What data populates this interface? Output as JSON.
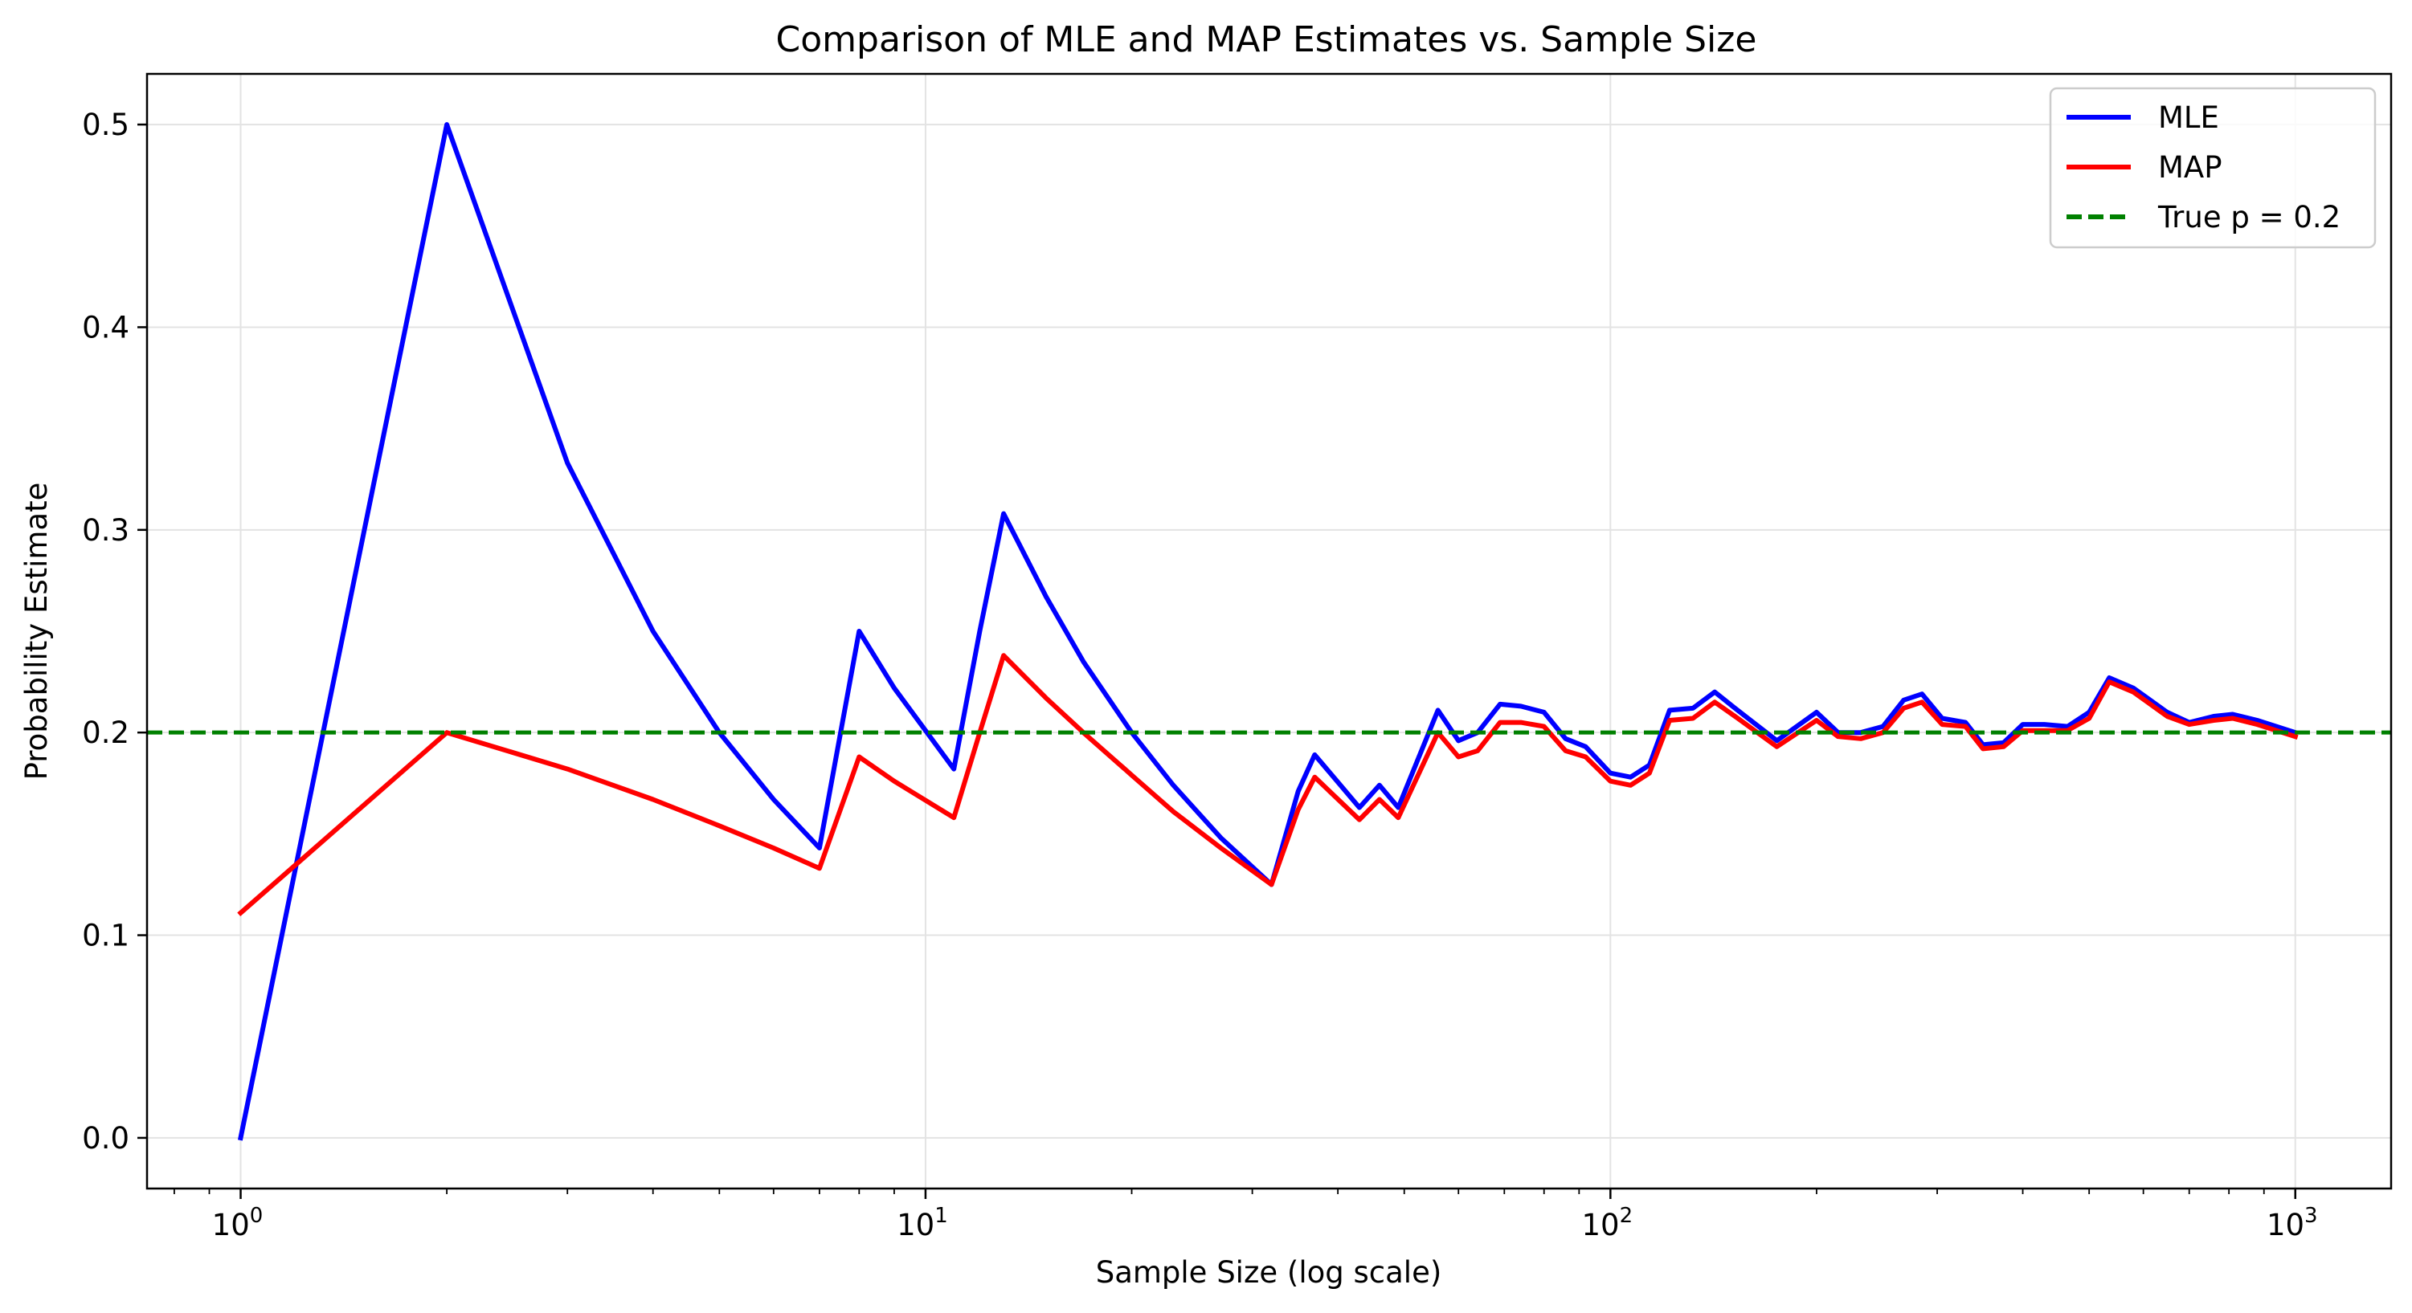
{
  "chart_data": {
    "type": "line",
    "title": "Comparison of MLE and MAP Estimates vs. Sample Size",
    "xlabel": "Sample Size (log scale)",
    "ylabel": "Probability Estimate",
    "x_scale": "log",
    "xlim": [
      0.73,
      1380
    ],
    "ylim": [
      -0.025,
      0.525
    ],
    "x_ticks": [
      {
        "value": 1,
        "base": "10",
        "exp": "0"
      },
      {
        "value": 10,
        "base": "10",
        "exp": "1"
      },
      {
        "value": 100,
        "base": "10",
        "exp": "2"
      },
      {
        "value": 1000,
        "base": "10",
        "exp": "3"
      }
    ],
    "y_ticks": [
      {
        "value": 0.0,
        "label": "0.0"
      },
      {
        "value": 0.1,
        "label": "0.1"
      },
      {
        "value": 0.2,
        "label": "0.2"
      },
      {
        "value": 0.3,
        "label": "0.3"
      },
      {
        "value": 0.4,
        "label": "0.4"
      },
      {
        "value": 0.5,
        "label": "0.5"
      }
    ],
    "grid": true,
    "legend_position": "top-right",
    "series": [
      {
        "name": "MLE",
        "color": "#0000ff",
        "style": "solid",
        "points": [
          [
            1,
            0.0
          ],
          [
            2,
            0.5
          ],
          [
            3,
            0.333
          ],
          [
            4,
            0.25
          ],
          [
            5,
            0.2
          ],
          [
            6,
            0.167
          ],
          [
            7,
            0.143
          ],
          [
            8,
            0.25
          ],
          [
            9,
            0.222
          ],
          [
            11,
            0.182
          ],
          [
            12,
            0.25
          ],
          [
            13,
            0.308
          ],
          [
            15,
            0.267
          ],
          [
            17,
            0.235
          ],
          [
            20,
            0.2
          ],
          [
            23,
            0.174
          ],
          [
            27,
            0.148
          ],
          [
            32,
            0.125
          ],
          [
            35,
            0.171
          ],
          [
            37,
            0.189
          ],
          [
            43,
            0.163
          ],
          [
            46,
            0.174
          ],
          [
            49,
            0.163
          ],
          [
            56,
            0.211
          ],
          [
            60,
            0.196
          ],
          [
            64,
            0.2
          ],
          [
            69,
            0.214
          ],
          [
            74,
            0.213
          ],
          [
            80,
            0.21
          ],
          [
            86,
            0.197
          ],
          [
            92,
            0.193
          ],
          [
            100,
            0.18
          ],
          [
            107,
            0.178
          ],
          [
            114,
            0.184
          ],
          [
            122,
            0.211
          ],
          [
            132,
            0.212
          ],
          [
            142,
            0.22
          ],
          [
            152,
            0.212
          ],
          [
            175,
            0.196
          ],
          [
            200,
            0.21
          ],
          [
            215,
            0.2
          ],
          [
            232,
            0.2
          ],
          [
            250,
            0.203
          ],
          [
            268,
            0.216
          ],
          [
            285,
            0.219
          ],
          [
            305,
            0.207
          ],
          [
            330,
            0.205
          ],
          [
            350,
            0.194
          ],
          [
            375,
            0.195
          ],
          [
            400,
            0.204
          ],
          [
            430,
            0.204
          ],
          [
            465,
            0.203
          ],
          [
            500,
            0.21
          ],
          [
            535,
            0.227
          ],
          [
            580,
            0.222
          ],
          [
            650,
            0.21
          ],
          [
            700,
            0.205
          ],
          [
            760,
            0.208
          ],
          [
            810,
            0.209
          ],
          [
            880,
            0.206
          ],
          [
            1000,
            0.2
          ]
        ]
      },
      {
        "name": "MAP",
        "color": "#ff0000",
        "style": "solid",
        "points": [
          [
            1,
            0.111
          ],
          [
            2,
            0.2
          ],
          [
            3,
            0.182
          ],
          [
            4,
            0.167
          ],
          [
            5,
            0.154
          ],
          [
            6,
            0.143
          ],
          [
            7,
            0.133
          ],
          [
            8,
            0.188
          ],
          [
            9,
            0.176
          ],
          [
            11,
            0.158
          ],
          [
            12,
            0.2
          ],
          [
            13,
            0.238
          ],
          [
            15,
            0.217
          ],
          [
            17,
            0.2
          ],
          [
            20,
            0.179
          ],
          [
            23,
            0.161
          ],
          [
            27,
            0.143
          ],
          [
            32,
            0.125
          ],
          [
            35,
            0.162
          ],
          [
            37,
            0.178
          ],
          [
            43,
            0.157
          ],
          [
            46,
            0.167
          ],
          [
            49,
            0.158
          ],
          [
            56,
            0.2
          ],
          [
            60,
            0.188
          ],
          [
            64,
            0.191
          ],
          [
            69,
            0.205
          ],
          [
            74,
            0.205
          ],
          [
            80,
            0.203
          ],
          [
            86,
            0.191
          ],
          [
            92,
            0.188
          ],
          [
            100,
            0.176
          ],
          [
            107,
            0.174
          ],
          [
            114,
            0.18
          ],
          [
            122,
            0.206
          ],
          [
            132,
            0.207
          ],
          [
            142,
            0.215
          ],
          [
            152,
            0.208
          ],
          [
            175,
            0.193
          ],
          [
            200,
            0.206
          ],
          [
            215,
            0.198
          ],
          [
            232,
            0.197
          ],
          [
            250,
            0.2
          ],
          [
            268,
            0.212
          ],
          [
            285,
            0.215
          ],
          [
            305,
            0.204
          ],
          [
            330,
            0.203
          ],
          [
            350,
            0.192
          ],
          [
            375,
            0.193
          ],
          [
            400,
            0.201
          ],
          [
            430,
            0.201
          ],
          [
            465,
            0.201
          ],
          [
            500,
            0.207
          ],
          [
            535,
            0.225
          ],
          [
            580,
            0.22
          ],
          [
            650,
            0.208
          ],
          [
            700,
            0.204
          ],
          [
            760,
            0.206
          ],
          [
            810,
            0.207
          ],
          [
            880,
            0.204
          ],
          [
            1000,
            0.198
          ]
        ]
      }
    ],
    "reference_lines": [
      {
        "name": "True p = 0.2",
        "y": 0.2,
        "color": "#008000",
        "style": "dashed"
      }
    ]
  }
}
